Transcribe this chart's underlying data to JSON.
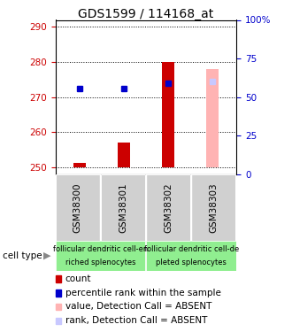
{
  "title": "GDS1599 / 114168_at",
  "categories": [
    "GSM38300",
    "GSM38301",
    "GSM38302",
    "GSM38303"
  ],
  "ylim_left": [
    248,
    292
  ],
  "ylim_right": [
    0,
    100
  ],
  "yticks_left": [
    250,
    260,
    270,
    280,
    290
  ],
  "yticks_right": [
    0,
    25,
    50,
    75,
    100
  ],
  "ytick_labels_right": [
    "0",
    "25",
    "50",
    "75",
    "100%"
  ],
  "red_bars": [
    251.2,
    257.0,
    280.0,
    null
  ],
  "pink_bars": [
    null,
    null,
    null,
    278.0
  ],
  "blue_squares": [
    272.5,
    272.5,
    274.0,
    null
  ],
  "light_blue_squares": [
    null,
    null,
    null,
    274.5
  ],
  "bar_bottom": 250,
  "legend_items": [
    {
      "color": "#cc0000",
      "label": "count"
    },
    {
      "color": "#0000cc",
      "label": "percentile rank within the sample"
    },
    {
      "color": "#ffb3b3",
      "label": "value, Detection Call = ABSENT"
    },
    {
      "color": "#c8c8ff",
      "label": "rank, Detection Call = ABSENT"
    }
  ],
  "axis_label_color_left": "#cc0000",
  "axis_label_color_right": "#0000cc",
  "bg_color": "#ffffff",
  "title_fontsize": 10,
  "tick_fontsize": 7.5,
  "legend_fontsize": 7.5,
  "group1_line1": "follicular dendritic cell-en",
  "group1_line2": "riched splenocytes",
  "group2_line1": "follicular dendritic cell-de",
  "group2_line2": "pleted splenocytes",
  "cell_type_label": "cell type",
  "gray_box_color": "#d0d0d0",
  "green_box_color": "#90ee90"
}
